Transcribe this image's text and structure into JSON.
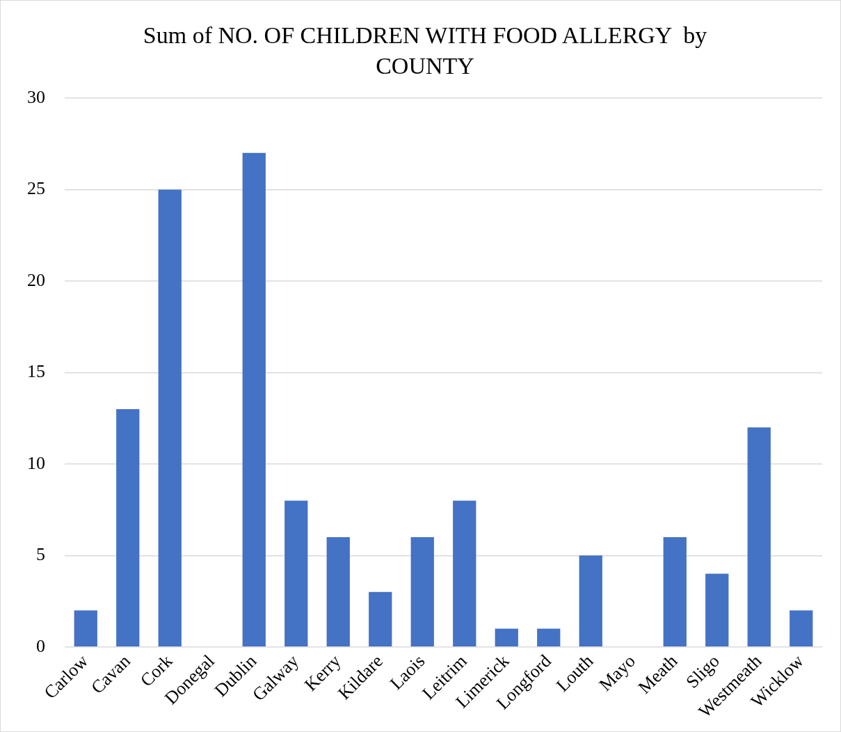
{
  "chart_data": {
    "type": "bar",
    "title": "Sum of NO. OF CHILDREN WITH FOOD ALLERGY  by COUNTY",
    "categories": [
      "Carlow",
      "Cavan",
      "Cork",
      "Donegal",
      "Dublin",
      "Galway",
      "Kerry",
      "Kildare",
      "Laois",
      "Leitrim",
      "Limerick",
      "Longford",
      "Louth",
      "Mayo",
      "Meath",
      "Sligo",
      "Westmeath",
      "Wicklow"
    ],
    "values": [
      2,
      13,
      25,
      0,
      27,
      8,
      6,
      3,
      6,
      8,
      1,
      1,
      5,
      0,
      6,
      4,
      12,
      2
    ],
    "color": "#4472c4",
    "ylim": [
      0,
      30
    ],
    "yticks": [
      0,
      5,
      10,
      15,
      20,
      25,
      30
    ],
    "grid": "y",
    "legend": false
  }
}
